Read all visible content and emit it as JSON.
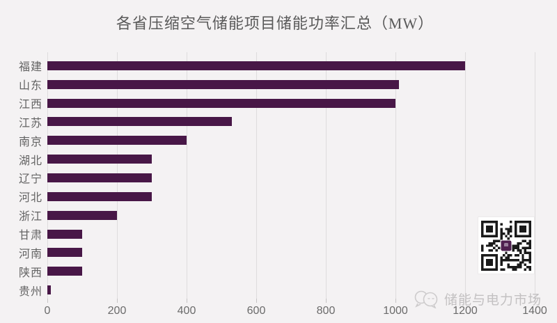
{
  "title": "各省压缩空气储能项目储能功率汇总（MW）",
  "watermark": {
    "text": "储能与电力市场",
    "logo": "chat-bubbles"
  },
  "qr": {
    "description": "qr-code-with-purple-center-logo"
  },
  "colors": {
    "background": "#f4f2f3",
    "bar": "#481747",
    "title_text": "#5a5a5a",
    "label_text": "#636363",
    "tick_text": "#6b6b6b",
    "gridline": "#dedcdd",
    "tick_mark": "#c6c4c5",
    "watermark_text": "#c3c1c2",
    "qr_dark": "#1a1a1a",
    "qr_center": "#4f2050"
  },
  "chart_data": {
    "type": "bar",
    "orientation": "horizontal",
    "title": "各省压缩空气储能项目储能功率汇总（MW）",
    "xlabel": "",
    "ylabel": "",
    "categories": [
      "福建",
      "山东",
      "江西",
      "江苏",
      "南京",
      "湖北",
      "辽宁",
      "河北",
      "浙江",
      "甘肃",
      "河南",
      "陕西",
      "贵州"
    ],
    "values": [
      1200,
      1010,
      1000,
      530,
      400,
      300,
      300,
      300,
      200,
      100,
      100,
      100,
      10
    ],
    "xlim": [
      0,
      1400
    ],
    "x_ticks": [
      0,
      200,
      400,
      600,
      800,
      1000,
      1200,
      1400
    ],
    "grid": true,
    "legend": false
  }
}
